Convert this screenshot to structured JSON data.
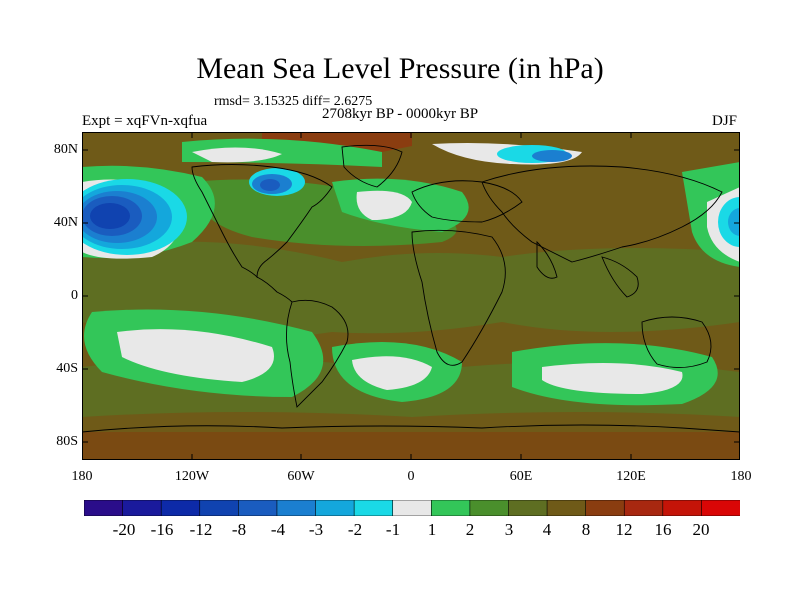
{
  "header": {
    "title": "Mean Sea Level Pressure (in hPa)",
    "stats": "rmsd= 3.15325 diff= 2.6275",
    "period": "2708kyr BP - 0000kyr BP",
    "experiment": "Expt = xqFVn-xqfua",
    "season": "DJF"
  },
  "axes": {
    "lat_labels": [
      "80N",
      "40N",
      "0",
      "40S",
      "80S"
    ],
    "lon_labels": [
      "180",
      "120W",
      "60W",
      "0",
      "60E",
      "120E",
      "180"
    ]
  },
  "colorbar": {
    "labels": [
      "-20",
      "-16",
      "-12",
      "-8",
      "-4",
      "-3",
      "-2",
      "-1",
      "1",
      "2",
      "3",
      "4",
      "8",
      "12",
      "16",
      "20"
    ],
    "colors": [
      "#2a0d8a",
      "#1a1a9c",
      "#0d2aa8",
      "#1043b0",
      "#1a5cbf",
      "#1b7fd0",
      "#14a7dc",
      "#1ad9e6",
      "#e8e8e8",
      "#33c659",
      "#4a8f2c",
      "#5e6e22",
      "#6f5a18",
      "#8a3d10",
      "#a82810",
      "#c41408",
      "#d90606"
    ]
  },
  "palette": {
    "land_outline": "#000000",
    "base_field": "#6f5a18",
    "field_plus2": "#33c659",
    "field_plus3": "#4a8f2c",
    "field_plus4": "#5e6e22",
    "field_plus8": "#6f5a18",
    "field_plus12": "#8a3d10",
    "near_zero": "#e8e8e8"
  }
}
